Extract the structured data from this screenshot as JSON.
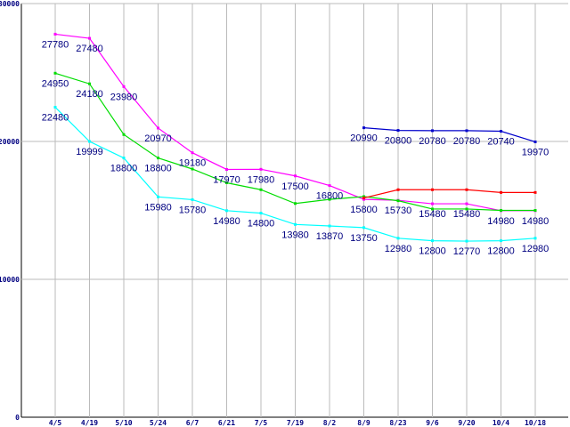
{
  "chart_data": {
    "type": "line",
    "title": "",
    "xlabel": "",
    "ylabel": "",
    "ylim": [
      0,
      30000
    ],
    "grid": true,
    "y_ticks": [
      {
        "value": 0,
        "label": "0"
      },
      {
        "value": 10000,
        "label": "10000"
      },
      {
        "value": 20000,
        "label": "20000"
      },
      {
        "value": 30000,
        "label": "30000"
      }
    ],
    "categories": [
      "4/5",
      "4/19",
      "5/10",
      "5/24",
      "6/7",
      "6/21",
      "7/5",
      "7/19",
      "8/2",
      "8/9",
      "8/23",
      "9/6",
      "9/20",
      "10/4",
      "10/18"
    ],
    "series": [
      {
        "color": "#ff00ff",
        "values": [
          27780,
          27480,
          23980,
          20970,
          19180,
          17970,
          17980,
          17500,
          16800,
          15800,
          15730,
          15480,
          15480,
          14980,
          14980
        ],
        "labels": [
          "27780",
          "27480",
          "23980",
          "20970",
          "19180",
          "17970",
          "17980",
          "17500",
          "16800",
          "15800",
          "15730",
          "15480",
          "15480",
          "14980",
          "14980"
        ]
      },
      {
        "color": "#00dd00",
        "values": [
          24950,
          24180,
          20500,
          18800,
          18000,
          17000,
          16500,
          15500,
          15800,
          16000,
          15700,
          15100,
          15100,
          15000,
          15000
        ],
        "labels": [
          "24950",
          "24180",
          null,
          "18800",
          null,
          null,
          null,
          null,
          null,
          null,
          null,
          null,
          null,
          null,
          null
        ]
      },
      {
        "color": "#00ffff",
        "values": [
          22480,
          19999,
          18800,
          15980,
          15780,
          14980,
          14800,
          13980,
          13870,
          13750,
          12980,
          12800,
          12770,
          12800,
          12980
        ],
        "labels": [
          "22480",
          "19999",
          "18800",
          "15980",
          "15780",
          "14980",
          "14800",
          "13980",
          "13870",
          "13750",
          "12980",
          "12800",
          "12770",
          "12800",
          "12980"
        ]
      },
      {
        "color": "#ff0000",
        "values": [
          null,
          null,
          null,
          null,
          null,
          null,
          null,
          null,
          null,
          15900,
          16500,
          16500,
          16500,
          16300,
          16300
        ],
        "labels": []
      },
      {
        "color": "#0000cc",
        "values": [
          null,
          null,
          null,
          null,
          null,
          null,
          null,
          null,
          null,
          20990,
          20800,
          20780,
          20780,
          20740,
          19970
        ],
        "labels": [
          null,
          null,
          null,
          null,
          null,
          null,
          null,
          null,
          null,
          "20990",
          "20800",
          "20780",
          "20780",
          "20740",
          "19970"
        ]
      }
    ]
  }
}
